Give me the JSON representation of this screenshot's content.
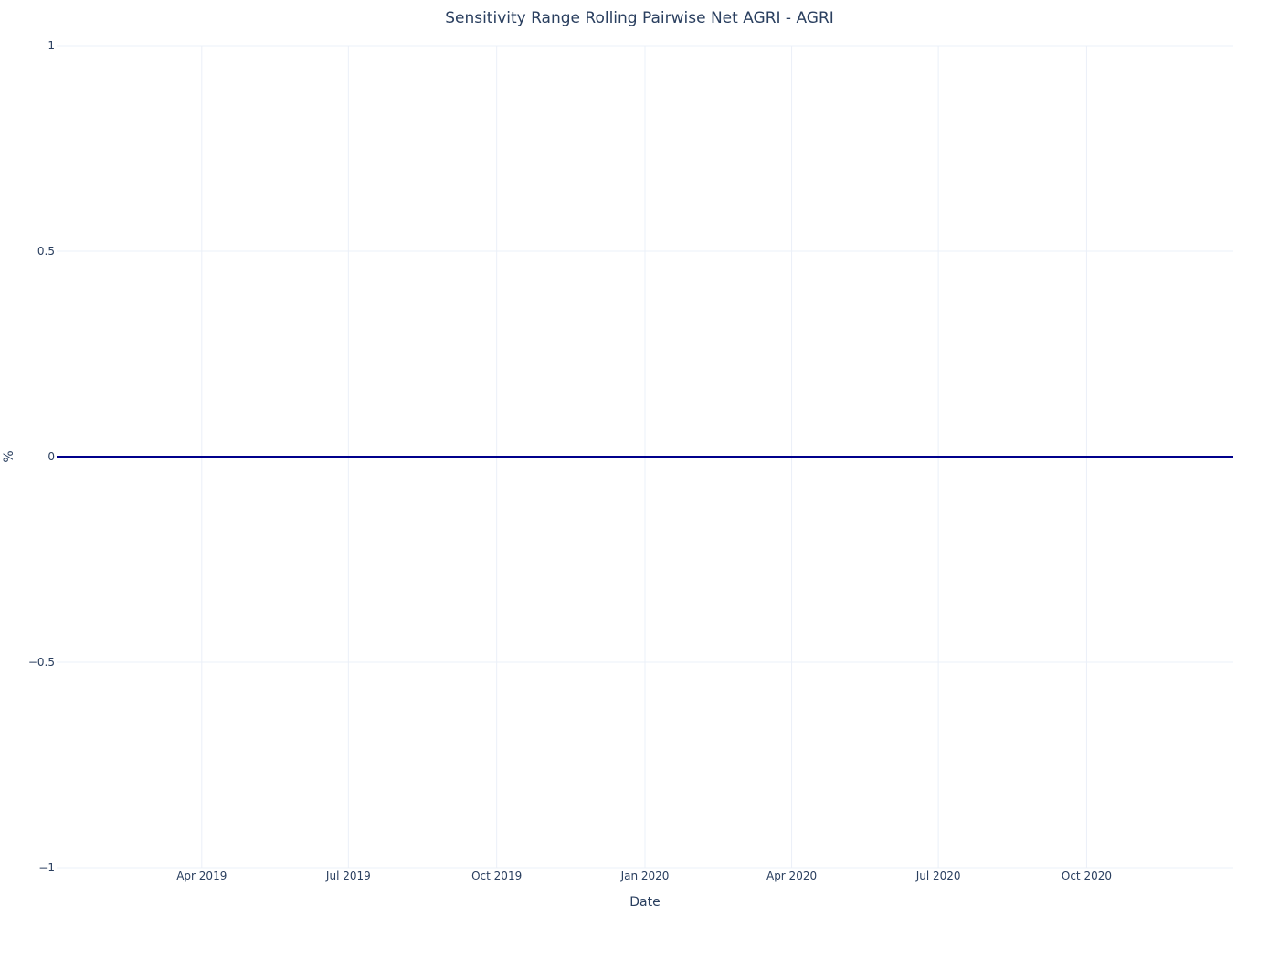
{
  "chart_data": {
    "type": "line",
    "title": "Sensitivity Range Rolling Pairwise Net AGRI - AGRI",
    "xlabel": "Date",
    "ylabel": "%",
    "xlim": [
      "2019-01-01",
      "2020-12-31"
    ],
    "ylim": [
      -1,
      1
    ],
    "x_ticks": [
      {
        "date": "2019-04-01",
        "label": "Apr 2019"
      },
      {
        "date": "2019-07-01",
        "label": "Jul 2019"
      },
      {
        "date": "2019-10-01",
        "label": "Oct 2019"
      },
      {
        "date": "2020-01-01",
        "label": "Jan 2020"
      },
      {
        "date": "2020-04-01",
        "label": "Apr 2020"
      },
      {
        "date": "2020-07-01",
        "label": "Jul 2020"
      },
      {
        "date": "2020-10-01",
        "label": "Oct 2020"
      }
    ],
    "y_ticks": [
      {
        "value": 1,
        "label": "1"
      },
      {
        "value": 0.5,
        "label": "0.5"
      },
      {
        "value": 0,
        "label": "0"
      },
      {
        "value": -0.5,
        "label": "−0.5"
      },
      {
        "value": -1,
        "label": "−1"
      }
    ],
    "grid": true,
    "legend": "none",
    "series": [
      {
        "color": "#00008b",
        "x": [
          "2019-01-01",
          "2020-12-31"
        ],
        "y": [
          0,
          0
        ]
      }
    ]
  }
}
